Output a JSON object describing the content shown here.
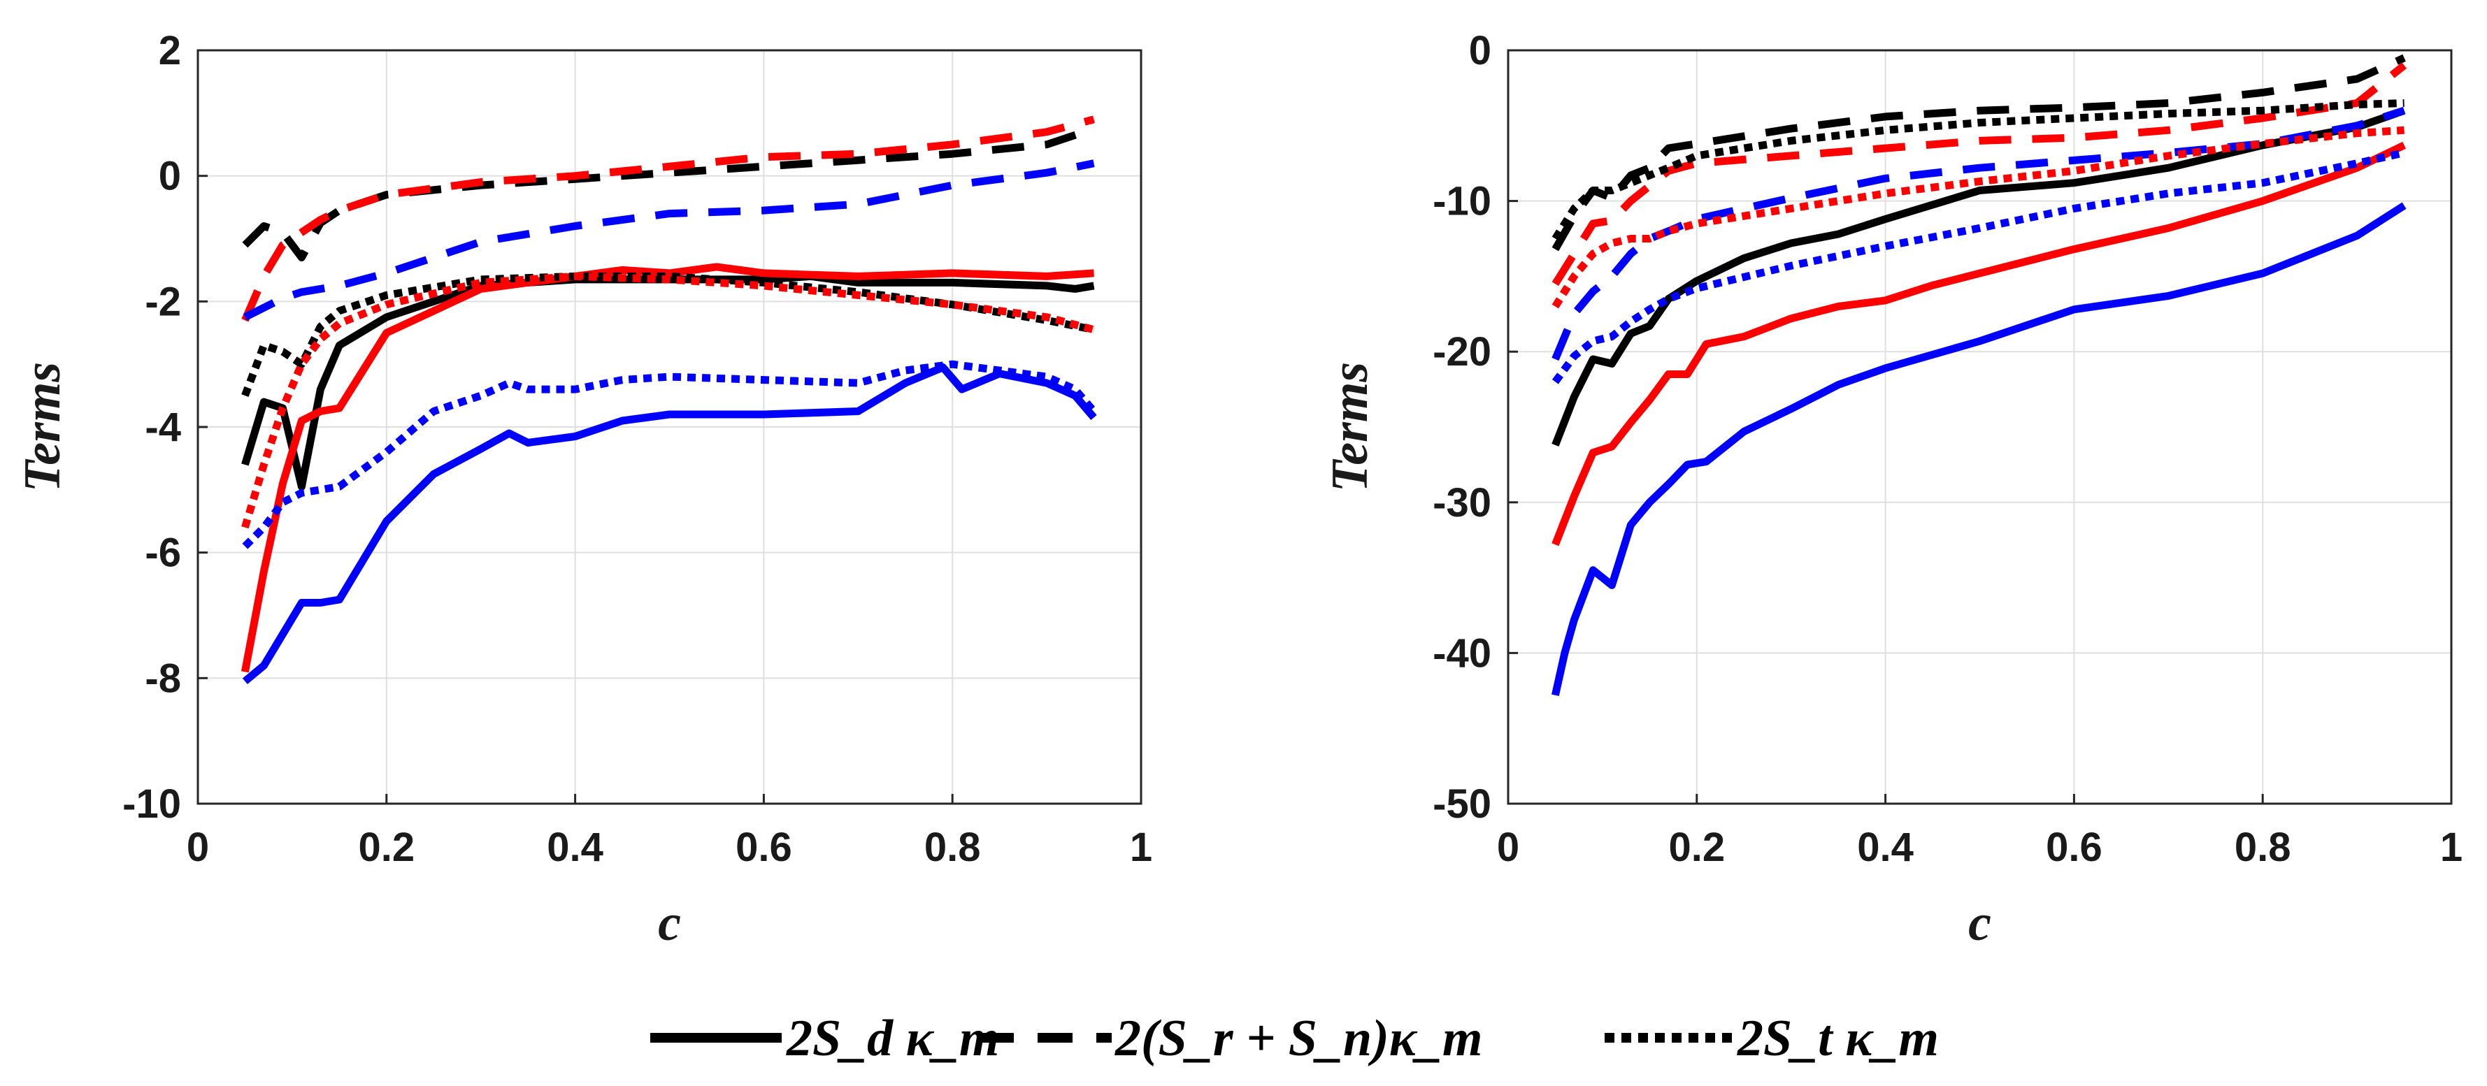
{
  "legend": {
    "solid": "2S_d κ_m",
    "dashed": "2(S_r + S_n)κ_m",
    "dotted": "2S_t κ_m"
  },
  "colors": {
    "black": "#000000",
    "red": "#ff0000",
    "blue": "#0000ff"
  },
  "chart_data": [
    {
      "type": "line",
      "title": "",
      "xlabel": "c",
      "ylabel": "Terms",
      "xlim": [
        0,
        1
      ],
      "ylim": [
        -10,
        2
      ],
      "xticks": [
        0,
        0.2,
        0.4,
        0.6,
        0.8,
        1
      ],
      "xtick_labels": [
        "0",
        "0.2",
        "0.4",
        "0.6",
        "0.8",
        "1"
      ],
      "yticks": [
        -10,
        -8,
        -6,
        -4,
        -2,
        0,
        2
      ],
      "ytick_labels": [
        "-10",
        "-8",
        "-6",
        "-4",
        "-2",
        "0",
        "2"
      ],
      "grid": true,
      "series": [
        {
          "name": "black solid",
          "color": "#000000",
          "style": "solid",
          "x": [
            0.05,
            0.07,
            0.09,
            0.11,
            0.13,
            0.15,
            0.2,
            0.3,
            0.4,
            0.5,
            0.6,
            0.65,
            0.7,
            0.8,
            0.9,
            0.93,
            0.95
          ],
          "y": [
            -4.6,
            -3.6,
            -3.7,
            -4.95,
            -3.4,
            -2.7,
            -2.25,
            -1.75,
            -1.65,
            -1.65,
            -1.65,
            -1.6,
            -1.7,
            -1.7,
            -1.75,
            -1.8,
            -1.75
          ]
        },
        {
          "name": "red solid",
          "color": "#ff0000",
          "style": "solid",
          "x": [
            0.05,
            0.07,
            0.09,
            0.11,
            0.13,
            0.15,
            0.2,
            0.3,
            0.4,
            0.45,
            0.5,
            0.55,
            0.6,
            0.7,
            0.8,
            0.9,
            0.95
          ],
          "y": [
            -7.9,
            -6.3,
            -4.9,
            -3.9,
            -3.75,
            -3.7,
            -2.5,
            -1.8,
            -1.6,
            -1.5,
            -1.55,
            -1.45,
            -1.55,
            -1.6,
            -1.55,
            -1.6,
            -1.55
          ]
        },
        {
          "name": "blue solid",
          "color": "#0000ff",
          "style": "solid",
          "x": [
            0.05,
            0.07,
            0.09,
            0.11,
            0.13,
            0.15,
            0.2,
            0.25,
            0.3,
            0.33,
            0.35,
            0.4,
            0.45,
            0.5,
            0.6,
            0.7,
            0.75,
            0.79,
            0.81,
            0.85,
            0.9,
            0.93,
            0.95
          ],
          "y": [
            -8.05,
            -7.8,
            -7.3,
            -6.8,
            -6.8,
            -6.75,
            -5.5,
            -4.75,
            -4.35,
            -4.1,
            -4.25,
            -4.15,
            -3.9,
            -3.8,
            -3.8,
            -3.75,
            -3.3,
            -3.05,
            -3.4,
            -3.15,
            -3.3,
            -3.5,
            -3.85
          ]
        },
        {
          "name": "black dashed",
          "color": "#000000",
          "style": "dashed",
          "x": [
            0.05,
            0.07,
            0.09,
            0.11,
            0.13,
            0.15,
            0.2,
            0.3,
            0.4,
            0.5,
            0.6,
            0.7,
            0.8,
            0.9,
            0.95
          ],
          "y": [
            -1.1,
            -0.8,
            -0.9,
            -1.3,
            -0.75,
            -0.55,
            -0.3,
            -0.15,
            -0.05,
            0.05,
            0.15,
            0.25,
            0.35,
            0.5,
            0.75
          ]
        },
        {
          "name": "red dashed",
          "color": "#ff0000",
          "style": "dashed",
          "x": [
            0.05,
            0.07,
            0.09,
            0.11,
            0.13,
            0.15,
            0.2,
            0.3,
            0.4,
            0.5,
            0.6,
            0.7,
            0.8,
            0.9,
            0.95
          ],
          "y": [
            -2.3,
            -1.6,
            -1.1,
            -0.9,
            -0.7,
            -0.55,
            -0.3,
            -0.1,
            0.0,
            0.15,
            0.3,
            0.35,
            0.5,
            0.7,
            0.9
          ]
        },
        {
          "name": "blue dashed",
          "color": "#0000ff",
          "style": "dashed",
          "x": [
            0.05,
            0.07,
            0.09,
            0.11,
            0.13,
            0.15,
            0.2,
            0.3,
            0.4,
            0.5,
            0.6,
            0.7,
            0.8,
            0.9,
            0.95
          ],
          "y": [
            -2.25,
            -2.1,
            -1.95,
            -1.85,
            -1.8,
            -1.75,
            -1.55,
            -1.05,
            -0.8,
            -0.6,
            -0.55,
            -0.45,
            -0.15,
            0.05,
            0.2
          ]
        },
        {
          "name": "black dotted",
          "color": "#000000",
          "style": "dotted",
          "x": [
            0.05,
            0.07,
            0.09,
            0.11,
            0.13,
            0.15,
            0.2,
            0.3,
            0.4,
            0.5,
            0.6,
            0.7,
            0.8,
            0.9,
            0.95
          ],
          "y": [
            -3.5,
            -2.7,
            -2.8,
            -3.0,
            -2.4,
            -2.15,
            -1.9,
            -1.65,
            -1.6,
            -1.6,
            -1.7,
            -1.85,
            -2.05,
            -2.3,
            -2.45
          ]
        },
        {
          "name": "red dotted",
          "color": "#ff0000",
          "style": "dotted",
          "x": [
            0.05,
            0.07,
            0.09,
            0.11,
            0.13,
            0.15,
            0.2,
            0.3,
            0.4,
            0.5,
            0.6,
            0.7,
            0.8,
            0.9,
            0.95
          ],
          "y": [
            -5.6,
            -4.6,
            -3.7,
            -3.0,
            -2.6,
            -2.35,
            -2.05,
            -1.7,
            -1.6,
            -1.65,
            -1.75,
            -1.9,
            -2.05,
            -2.25,
            -2.45
          ]
        },
        {
          "name": "blue dotted",
          "color": "#0000ff",
          "style": "dotted",
          "x": [
            0.05,
            0.07,
            0.09,
            0.11,
            0.13,
            0.15,
            0.2,
            0.25,
            0.3,
            0.33,
            0.35,
            0.4,
            0.45,
            0.5,
            0.6,
            0.7,
            0.75,
            0.8,
            0.85,
            0.9,
            0.93,
            0.95
          ],
          "y": [
            -5.9,
            -5.6,
            -5.2,
            -5.05,
            -5.0,
            -4.95,
            -4.4,
            -3.75,
            -3.5,
            -3.3,
            -3.4,
            -3.4,
            -3.25,
            -3.2,
            -3.25,
            -3.3,
            -3.1,
            -3.0,
            -3.1,
            -3.2,
            -3.4,
            -3.75
          ]
        }
      ]
    },
    {
      "type": "line",
      "title": "",
      "xlabel": "c",
      "ylabel": "Terms",
      "xlim": [
        0,
        1
      ],
      "ylim": [
        -50,
        0
      ],
      "xticks": [
        0,
        0.2,
        0.4,
        0.6,
        0.8,
        1
      ],
      "xtick_labels": [
        "0",
        "0.2",
        "0.4",
        "0.6",
        "0.8",
        "1"
      ],
      "yticks": [
        -50,
        -40,
        -30,
        -20,
        -10,
        0
      ],
      "ytick_labels": [
        "-50",
        "-40",
        "-30",
        "-20",
        "-10",
        "0"
      ],
      "grid": true,
      "series": [
        {
          "name": "black solid",
          "color": "#000000",
          "style": "solid",
          "x": [
            0.05,
            0.07,
            0.09,
            0.11,
            0.13,
            0.15,
            0.17,
            0.2,
            0.25,
            0.3,
            0.35,
            0.4,
            0.5,
            0.6,
            0.7,
            0.8,
            0.9,
            0.95
          ],
          "y": [
            -26.2,
            -23.0,
            -20.5,
            -20.8,
            -18.8,
            -18.3,
            -16.5,
            -15.3,
            -13.8,
            -12.8,
            -12.2,
            -11.2,
            -9.3,
            -8.8,
            -7.8,
            -6.3,
            -5.1,
            -4.0
          ]
        },
        {
          "name": "red solid",
          "color": "#ff0000",
          "style": "solid",
          "x": [
            0.05,
            0.07,
            0.09,
            0.11,
            0.13,
            0.15,
            0.17,
            0.19,
            0.21,
            0.25,
            0.3,
            0.35,
            0.4,
            0.45,
            0.5,
            0.6,
            0.7,
            0.8,
            0.9,
            0.95
          ],
          "y": [
            -32.8,
            -29.6,
            -26.7,
            -26.3,
            -24.7,
            -23.2,
            -21.5,
            -21.5,
            -19.5,
            -19.0,
            -17.8,
            -17.0,
            -16.6,
            -15.6,
            -14.8,
            -13.2,
            -11.8,
            -10.0,
            -7.8,
            -6.3
          ]
        },
        {
          "name": "blue solid",
          "color": "#0000ff",
          "style": "solid",
          "x": [
            0.05,
            0.06,
            0.07,
            0.09,
            0.11,
            0.13,
            0.15,
            0.17,
            0.19,
            0.21,
            0.25,
            0.3,
            0.35,
            0.4,
            0.5,
            0.6,
            0.7,
            0.8,
            0.9,
            0.95
          ],
          "y": [
            -42.8,
            -40.0,
            -37.8,
            -34.5,
            -35.5,
            -31.5,
            -30.0,
            -28.8,
            -27.5,
            -27.3,
            -25.3,
            -23.8,
            -22.2,
            -21.1,
            -19.3,
            -17.2,
            -16.3,
            -14.8,
            -12.3,
            -10.3
          ]
        },
        {
          "name": "black dashed",
          "color": "#000000",
          "style": "dashed",
          "x": [
            0.05,
            0.07,
            0.09,
            0.11,
            0.13,
            0.15,
            0.17,
            0.2,
            0.3,
            0.4,
            0.5,
            0.6,
            0.7,
            0.8,
            0.9,
            0.95
          ],
          "y": [
            -13.2,
            -11.0,
            -9.3,
            -9.8,
            -8.3,
            -7.8,
            -6.5,
            -6.2,
            -5.2,
            -4.4,
            -4.0,
            -3.8,
            -3.5,
            -2.8,
            -1.9,
            -0.5
          ]
        },
        {
          "name": "red dashed",
          "color": "#ff0000",
          "style": "dashed",
          "x": [
            0.05,
            0.07,
            0.09,
            0.11,
            0.13,
            0.15,
            0.17,
            0.2,
            0.3,
            0.4,
            0.5,
            0.6,
            0.7,
            0.8,
            0.9,
            0.95
          ],
          "y": [
            -15.5,
            -13.5,
            -11.5,
            -11.3,
            -10.0,
            -9.0,
            -8.0,
            -7.5,
            -7.0,
            -6.5,
            -6.0,
            -5.8,
            -5.3,
            -4.5,
            -3.5,
            -1.0
          ]
        },
        {
          "name": "blue dashed",
          "color": "#0000ff",
          "style": "dashed",
          "x": [
            0.05,
            0.07,
            0.09,
            0.11,
            0.13,
            0.15,
            0.17,
            0.2,
            0.3,
            0.4,
            0.5,
            0.6,
            0.7,
            0.8,
            0.9,
            0.95
          ],
          "y": [
            -20.5,
            -17.5,
            -16.0,
            -15.0,
            -13.5,
            -12.5,
            -12.0,
            -11.2,
            -9.8,
            -8.5,
            -7.8,
            -7.3,
            -6.8,
            -6.2,
            -5.0,
            -4.0
          ]
        },
        {
          "name": "black dotted",
          "color": "#000000",
          "style": "dotted",
          "x": [
            0.05,
            0.07,
            0.09,
            0.11,
            0.13,
            0.15,
            0.17,
            0.2,
            0.3,
            0.4,
            0.5,
            0.6,
            0.7,
            0.8,
            0.9,
            0.95
          ],
          "y": [
            -12.5,
            -10.5,
            -9.3,
            -9.3,
            -8.8,
            -8.3,
            -7.8,
            -7.0,
            -6.0,
            -5.3,
            -4.8,
            -4.5,
            -4.2,
            -4.0,
            -3.6,
            -3.5
          ]
        },
        {
          "name": "red dotted",
          "color": "#ff0000",
          "style": "dotted",
          "x": [
            0.05,
            0.07,
            0.09,
            0.11,
            0.13,
            0.15,
            0.17,
            0.2,
            0.3,
            0.4,
            0.5,
            0.6,
            0.7,
            0.8,
            0.9,
            0.95
          ],
          "y": [
            -17.0,
            -15.0,
            -13.5,
            -12.8,
            -12.5,
            -12.5,
            -12.0,
            -11.5,
            -10.5,
            -9.5,
            -8.7,
            -8.0,
            -7.0,
            -6.2,
            -5.5,
            -5.3
          ]
        },
        {
          "name": "blue dotted",
          "color": "#0000ff",
          "style": "dotted",
          "x": [
            0.05,
            0.07,
            0.09,
            0.11,
            0.13,
            0.15,
            0.17,
            0.2,
            0.3,
            0.4,
            0.5,
            0.6,
            0.7,
            0.8,
            0.9,
            0.95
          ],
          "y": [
            -22.0,
            -20.3,
            -19.3,
            -19.0,
            -18.0,
            -17.2,
            -16.5,
            -15.8,
            -14.3,
            -13.0,
            -11.8,
            -10.5,
            -9.5,
            -8.8,
            -7.5,
            -6.8
          ]
        }
      ]
    }
  ]
}
